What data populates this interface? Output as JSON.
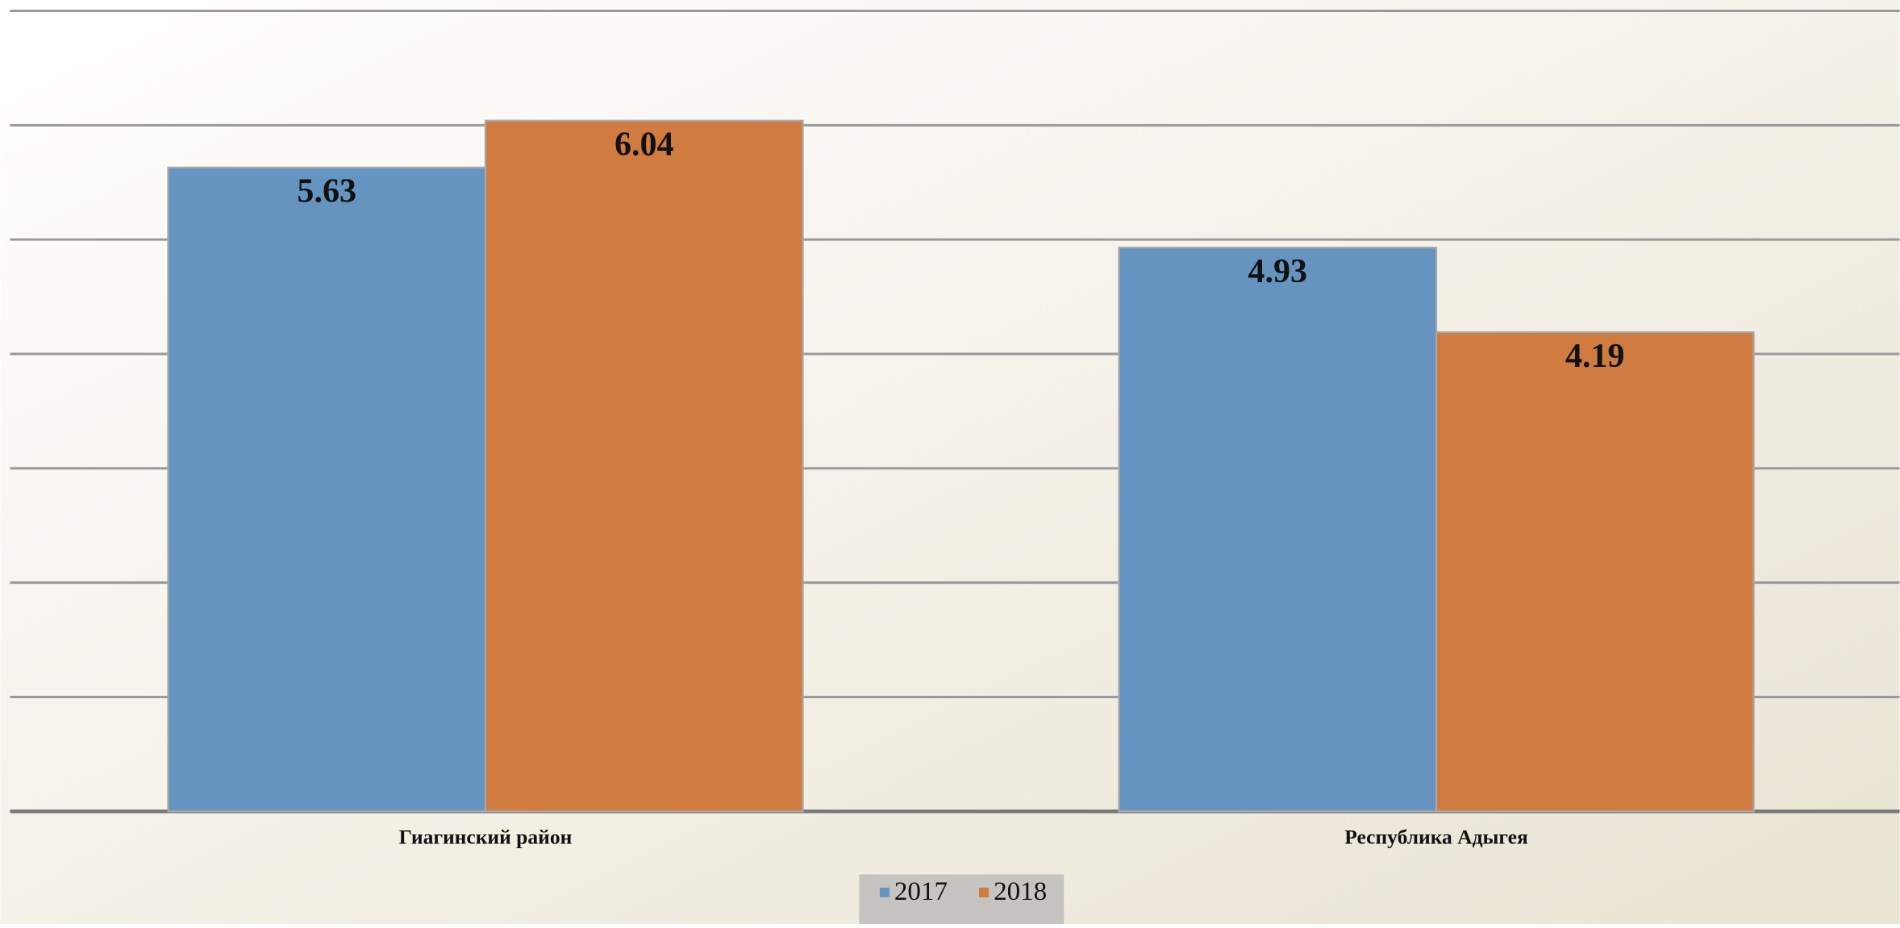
{
  "chart_data": {
    "type": "bar",
    "categories": [
      "Гиагинский район",
      "Республика Адыгея"
    ],
    "series": [
      {
        "name": "2017",
        "color": "#6594c1",
        "values": [
          5.63,
          4.93
        ]
      },
      {
        "name": "2018",
        "color": "#d07b40",
        "values": [
          6.04,
          4.19
        ]
      }
    ],
    "ylim": [
      0,
      7
    ],
    "yticks": [
      0,
      1,
      2,
      3,
      4,
      5,
      6,
      7
    ],
    "grid": true,
    "legend": "bottom"
  }
}
